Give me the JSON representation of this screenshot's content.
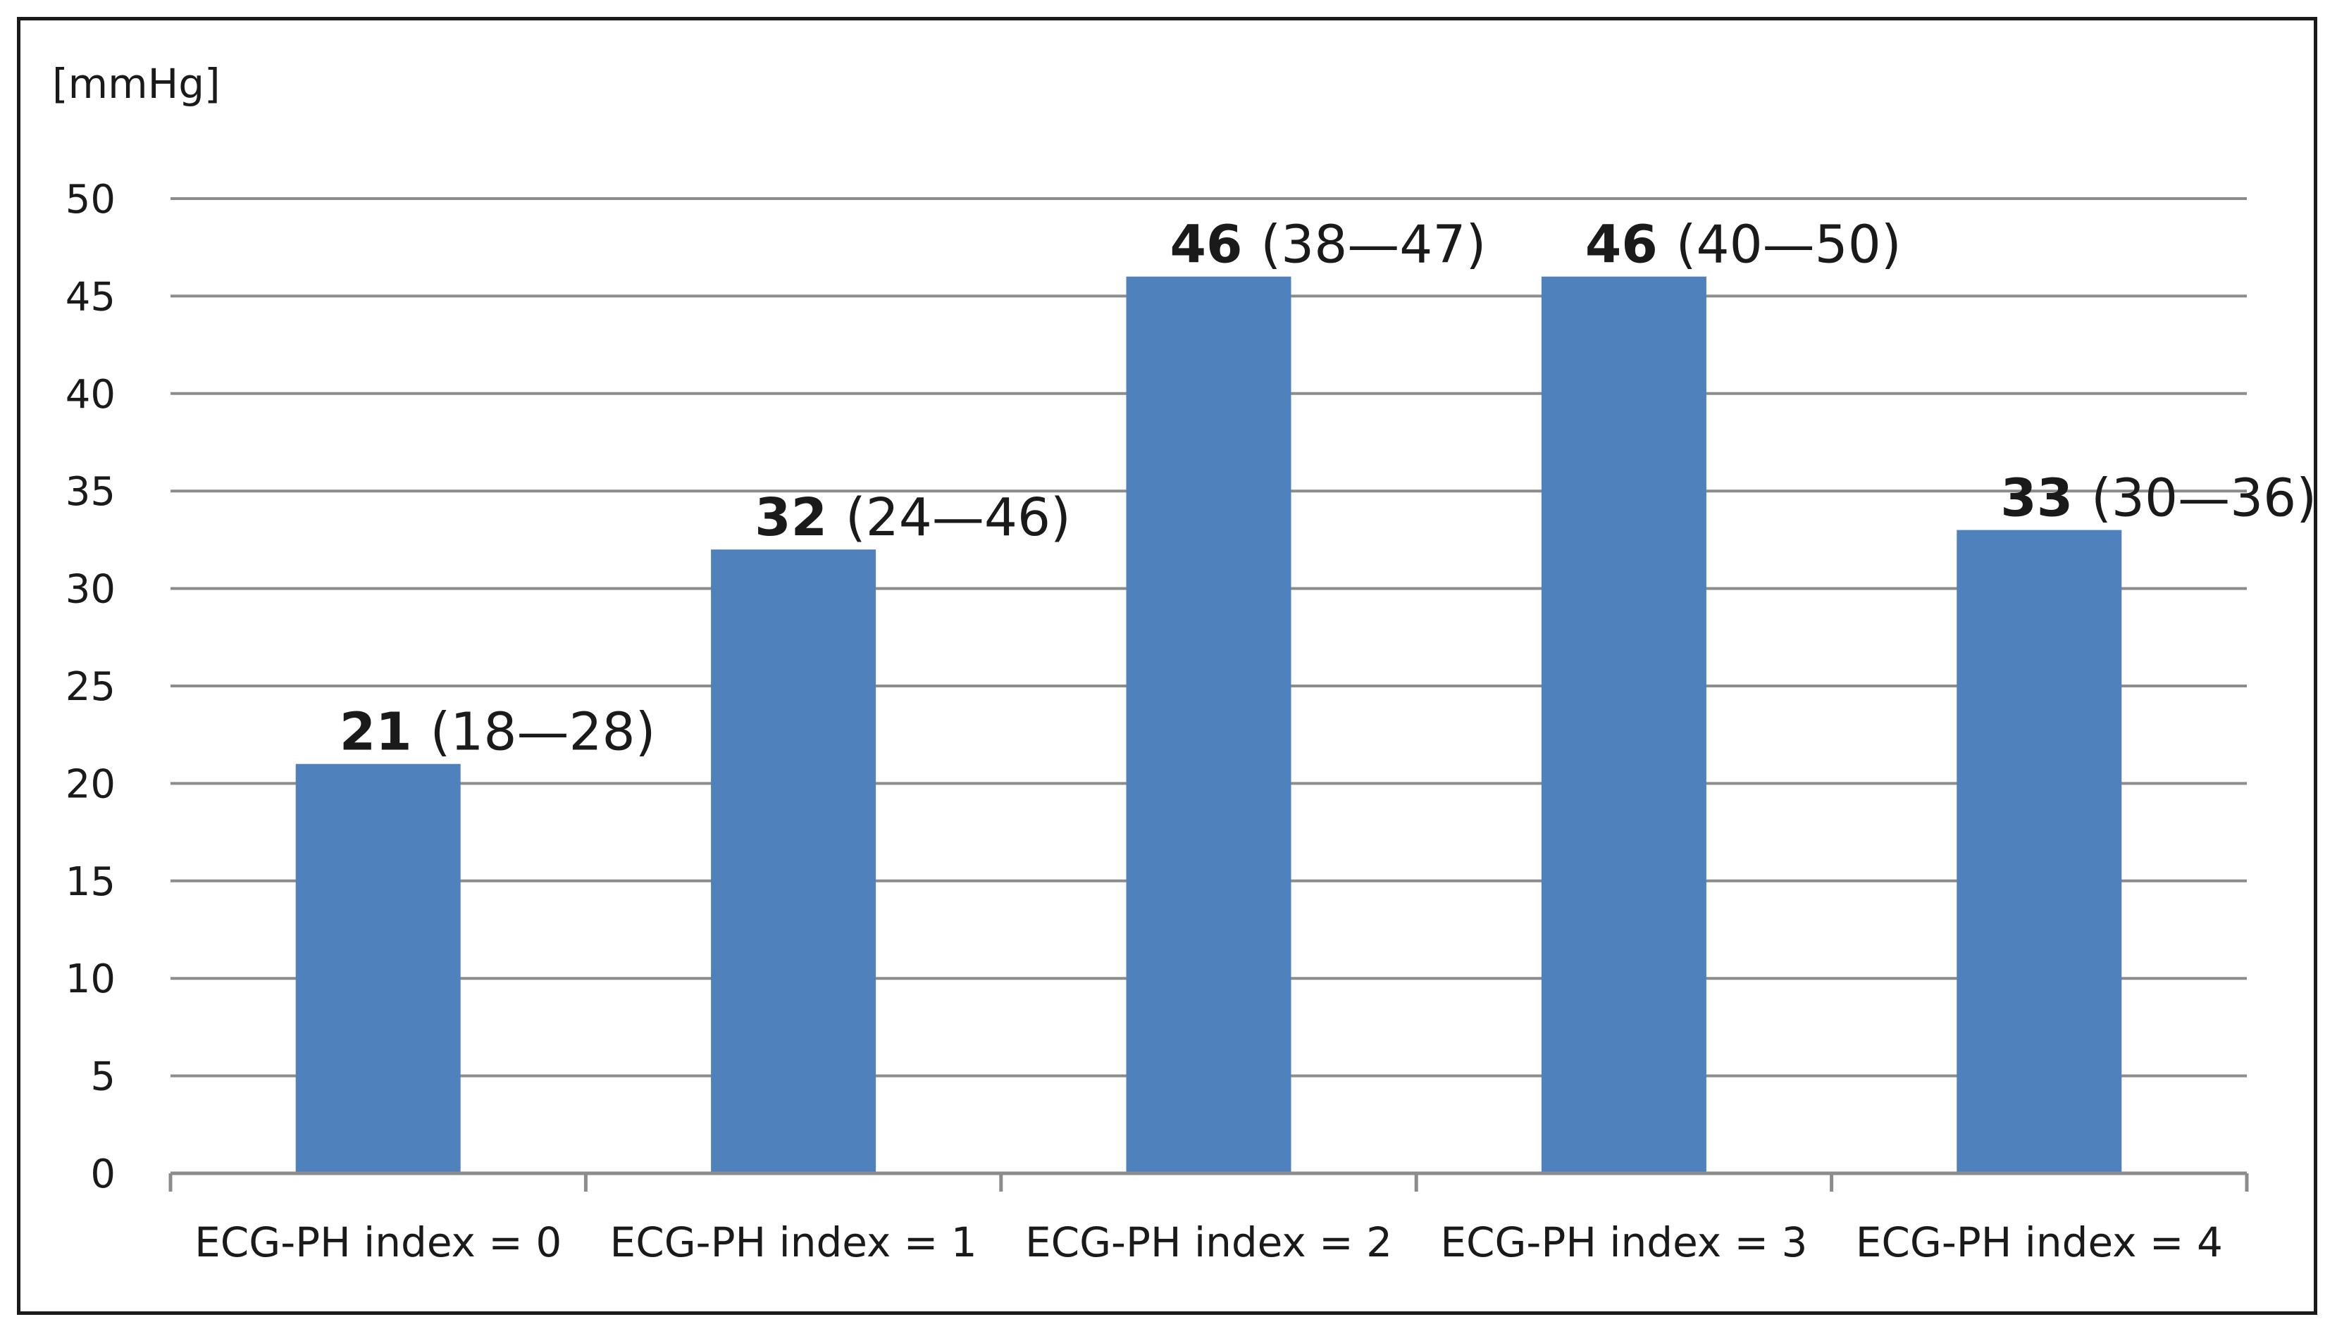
{
  "chart_data": {
    "type": "bar",
    "ylabel": "[mmHg]",
    "ylim": [
      0,
      50
    ],
    "yticks": [
      0,
      5,
      10,
      15,
      20,
      25,
      30,
      35,
      40,
      45,
      50
    ],
    "grid": true,
    "legend": "none",
    "categories": [
      "ECG-PH index = 0",
      "ECG-PH index = 1",
      "ECG-PH index = 2",
      "ECG-PH index = 3",
      "ECG-PH index = 4"
    ],
    "values": [
      21,
      32,
      46,
      46,
      33
    ],
    "ranges": [
      "(18—28)",
      "(24—46)",
      "(38—47)",
      "(40—50)",
      "(30—36)"
    ],
    "bar_color": "#4f81bd",
    "grid_color": "#8c8c8c"
  }
}
